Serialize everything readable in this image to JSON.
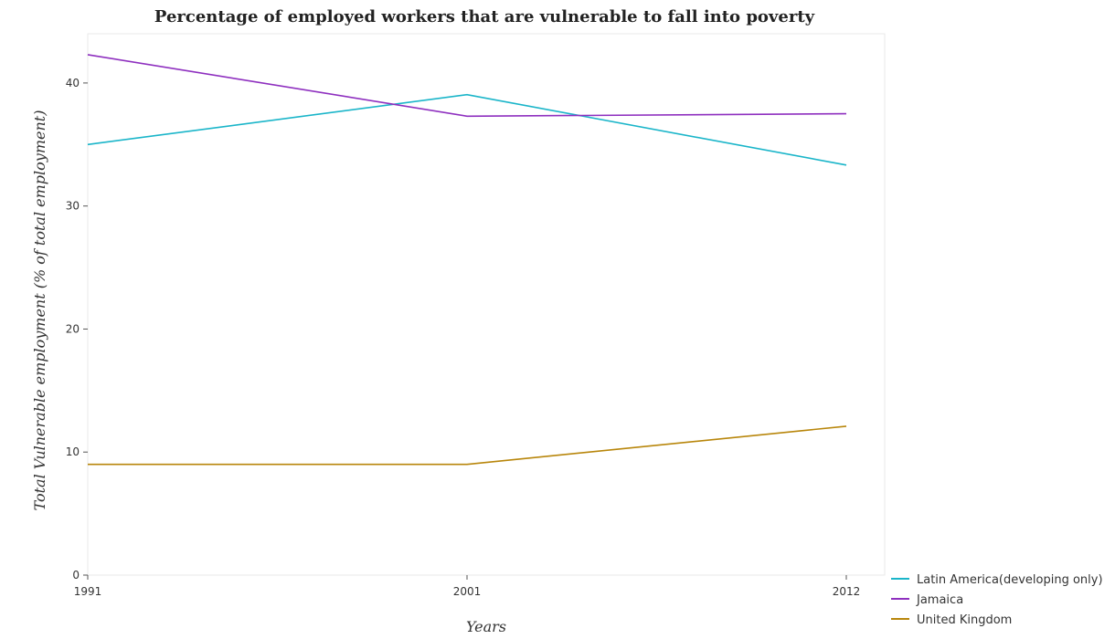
{
  "chart_data": {
    "type": "line",
    "title": "Percentage of employed workers that are vulnerable to fall into poverty",
    "xlabel": "Years",
    "ylabel": "Total Vulnerable employment (% of total employment)",
    "x": [
      "1991",
      "2001",
      "2012"
    ],
    "ylim": [
      0,
      44
    ],
    "yticks": [
      0,
      10,
      20,
      30,
      40
    ],
    "grid": false,
    "legend": "bottom-right",
    "series": [
      {
        "name": "Latin America(developing only)",
        "color": "#1ab5c9",
        "values": [
          35.0,
          39.05,
          33.33
        ]
      },
      {
        "name": "Jamaica",
        "color": "#8e2fbf",
        "values": [
          42.3,
          37.3,
          37.5
        ]
      },
      {
        "name": "United Kingdom",
        "color": "#b8860b",
        "values": [
          9.0,
          9.0,
          12.1
        ]
      }
    ]
  }
}
